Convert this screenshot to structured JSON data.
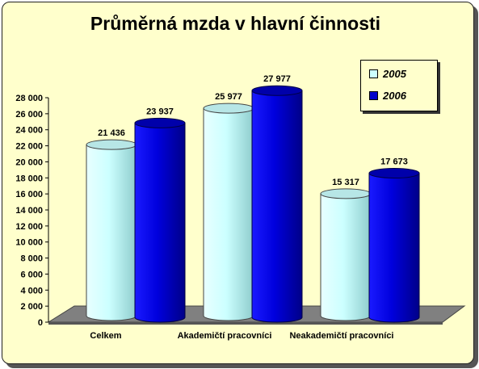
{
  "chart_data": {
    "type": "bar",
    "title": "Průměrná mzda v hlavní činnosti",
    "categories": [
      "Celkem",
      "Akademičtí pracovníci",
      "Neakademičtí pracovníci"
    ],
    "series": [
      {
        "name": "2005",
        "values": [
          21436,
          25977,
          15317
        ],
        "labels": [
          "21 436",
          "25 977",
          "15 317"
        ],
        "color": "#ccffff"
      },
      {
        "name": "2006",
        "values": [
          23937,
          27977,
          17673
        ],
        "labels": [
          "23 937",
          "27 977",
          "17 673"
        ],
        "color": "#0000cc"
      }
    ],
    "yticks": [
      "0",
      "2 000",
      "4 000",
      "6 000",
      "8 000",
      "10 000",
      "12 000",
      "14 000",
      "16 000",
      "18 000",
      "20 000",
      "22 000",
      "24 000",
      "26 000",
      "28 000"
    ],
    "ylim": [
      0,
      28000
    ],
    "legend_position": "top-right",
    "grid": false,
    "style": "3d-cylinder"
  }
}
